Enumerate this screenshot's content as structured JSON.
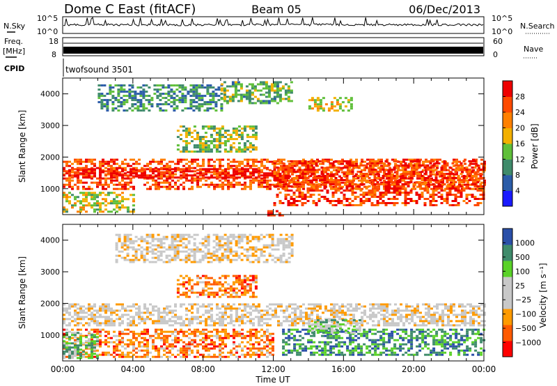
{
  "header": {
    "radar": "Dome C East (fitACF)",
    "beam": "Beam 05",
    "date": "06/Dec/2013"
  },
  "status_panels": {
    "nsky": {
      "label": "N.Sky",
      "ticks": [
        "10^5",
        "10^0"
      ]
    },
    "nsearch": {
      "label": "N.Search",
      "ticks": [
        "10^5",
        "10^0"
      ]
    },
    "freq": {
      "label_1": "Freq.",
      "label_2": "[MHz]",
      "ticks": [
        "18",
        "8"
      ]
    },
    "nave": {
      "label": "Nave",
      "ticks": [
        "60",
        "0"
      ]
    },
    "cpid": {
      "label": "CPID",
      "value": "twofsound 3501"
    }
  },
  "colors": {
    "power": [
      "#1a1aff",
      "#2b5ca8",
      "#3f8b6b",
      "#5fbf3a",
      "#f3b000",
      "#ff8000",
      "#ff4a00",
      "#ee0000"
    ],
    "velocity": [
      "#ff0000",
      "#ff5a00",
      "#ff9a00",
      "#c8c8c8",
      "#c8c8c8",
      "#5ad228",
      "#3f8b6b",
      "#2a4fa8"
    ]
  },
  "chart_data": [
    {
      "type": "heatmap",
      "name": "power",
      "ylabel": "Slant Range [km]",
      "xlim": [
        "00:00",
        "24:00"
      ],
      "ylim": [
        180,
        4500
      ],
      "yticks": [
        "1000",
        "2000",
        "3000",
        "4000"
      ],
      "colorbar": {
        "label": "Power [dB]",
        "ticks": [
          "28",
          "24",
          "20",
          "16",
          "12",
          "8",
          "4"
        ]
      },
      "regions": [
        {
          "t0": 0.0,
          "t1": 24.0,
          "r0": 1000,
          "r1": 1950,
          "level": 0.8
        },
        {
          "t0": 0.0,
          "t1": 12.0,
          "r0": 1350,
          "r1": 1650,
          "level": 0.95
        },
        {
          "t0": 12.0,
          "t1": 24.0,
          "r0": 500,
          "r1": 1900,
          "level": 0.85
        },
        {
          "t0": 0.0,
          "t1": 4.0,
          "r0": 250,
          "r1": 900,
          "level": 0.5
        },
        {
          "t0": 2.0,
          "t1": 9.0,
          "r0": 3500,
          "r1": 4300,
          "level": 0.3
        },
        {
          "t0": 9.0,
          "t1": 13.0,
          "r0": 3700,
          "r1": 4400,
          "level": 0.4
        },
        {
          "t0": 14.0,
          "t1": 16.5,
          "r0": 3500,
          "r1": 3900,
          "level": 0.55
        },
        {
          "t0": 6.5,
          "t1": 11.0,
          "r0": 2200,
          "r1": 3000,
          "level": 0.45
        },
        {
          "t0": 11.5,
          "t1": 12.5,
          "r0": 180,
          "r1": 320,
          "level": 0.95
        }
      ]
    },
    {
      "type": "heatmap",
      "name": "velocity",
      "xlabel": "Time UT",
      "ylabel": "Slant Range [km]",
      "xlim": [
        "00:00",
        "24:00"
      ],
      "xticks": [
        "00:00",
        "04:00",
        "08:00",
        "12:00",
        "16:00",
        "20:00",
        "00:00"
      ],
      "ylim": [
        180,
        4500
      ],
      "yticks": [
        "1000",
        "2000",
        "3000",
        "4000"
      ],
      "colorbar": {
        "label": "Velocity [m s⁻¹]",
        "ticks": [
          "1000",
          "500",
          "100",
          "25",
          "−25",
          "−100",
          "−500",
          "−1000"
        ]
      },
      "regions": [
        {
          "t0": 0.0,
          "t1": 24.0,
          "r0": 1300,
          "r1": 2000,
          "level": 0.45
        },
        {
          "t0": 0.0,
          "t1": 12.0,
          "r0": 300,
          "r1": 1200,
          "level": 0.25
        },
        {
          "t0": 0.0,
          "t1": 2.0,
          "r0": 300,
          "r1": 1100,
          "level": 0.7
        },
        {
          "t0": 12.5,
          "t1": 24.0,
          "r0": 350,
          "r1": 1200,
          "level": 0.8
        },
        {
          "t0": 14.0,
          "t1": 17.0,
          "r0": 1100,
          "r1": 1500,
          "level": 0.65
        },
        {
          "t0": 3.0,
          "t1": 13.0,
          "r0": 3300,
          "r1": 4200,
          "level": 0.45
        },
        {
          "t0": 6.5,
          "t1": 11.0,
          "r0": 2200,
          "r1": 2900,
          "level": 0.25
        }
      ]
    }
  ]
}
